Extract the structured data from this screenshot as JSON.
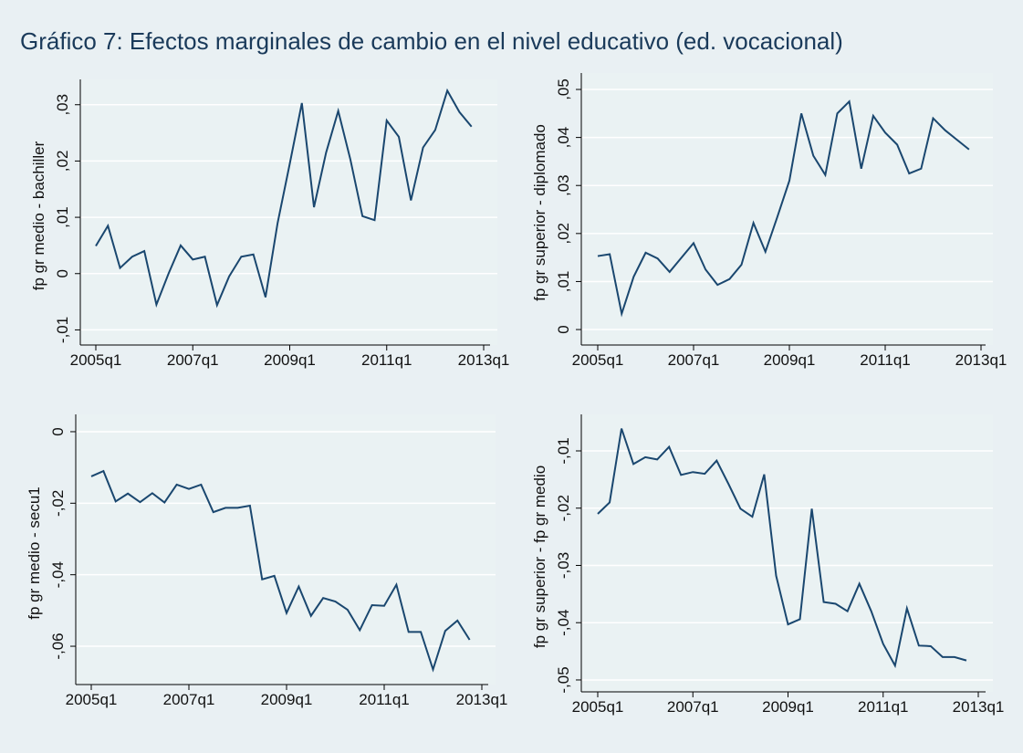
{
  "title": "Gráfico 7: Efectos marginales de cambio en el nivel educativo (ed. vocacional)",
  "chart_data": [
    {
      "type": "line",
      "y_label": "fp gr medio - bachiller",
      "color": "#1a476f",
      "grid": true,
      "x": [
        2005,
        2005.25,
        2005.5,
        2005.75,
        2006,
        2006.25,
        2006.5,
        2006.75,
        2007,
        2007.25,
        2007.5,
        2007.75,
        2008,
        2008.25,
        2008.5,
        2008.75,
        2009,
        2009.25,
        2009.5,
        2009.75,
        2010,
        2010.25,
        2010.5,
        2010.75,
        2011,
        2011.25,
        2011.5,
        2011.75,
        2012,
        2012.25,
        2012.5,
        2012.75
      ],
      "values": [
        0.0049,
        0.0085,
        0.001,
        0.003,
        0.004,
        -0.0055,
        0,
        0.005,
        0.0025,
        0.003,
        -0.0056,
        -0.0005,
        0.003,
        0.0034,
        -0.0042,
        0.009,
        0.0195,
        0.0303,
        0.0118,
        0.0215,
        0.0289,
        0.0203,
        0.0102,
        0.0095,
        0.0272,
        0.0243,
        0.013,
        0.0224,
        0.0255,
        0.0325,
        0.0287,
        0.0261
      ],
      "xlim": [
        2005,
        2013
      ],
      "xticks": [
        {
          "value": 2005,
          "label": "2005q1"
        },
        {
          "value": 2007,
          "label": "2007q1"
        },
        {
          "value": 2009,
          "label": "2009q1"
        },
        {
          "value": 2011,
          "label": "2011q1"
        },
        {
          "value": 2013,
          "label": "2013q1"
        }
      ],
      "ylim": [
        -0.0122,
        0.0332
      ],
      "yticks": [
        {
          "value": -0.01,
          "label": "-,01"
        },
        0,
        {
          "value": 0.01,
          "label": ",01"
        },
        {
          "value": 0.02,
          "label": ",02"
        },
        {
          "value": 0.03,
          "label": ",03"
        }
      ]
    },
    {
      "type": "line",
      "y_label": "fp gr superior - diplomado",
      "color": "#1a476f",
      "grid": true,
      "x": [
        2005,
        2005.25,
        2005.5,
        2005.75,
        2006,
        2006.25,
        2006.5,
        2006.75,
        2007,
        2007.25,
        2007.5,
        2007.75,
        2008,
        2008.25,
        2008.5,
        2008.75,
        2009,
        2009.25,
        2009.5,
        2009.75,
        2010,
        2010.25,
        2010.5,
        2010.75,
        2011,
        2011.25,
        2011.5,
        2011.75,
        2012,
        2012.25,
        2012.5,
        2012.75
      ],
      "values": [
        0.0153,
        0.0157,
        0.0033,
        0.011,
        0.016,
        0.0148,
        0.012,
        0.015,
        0.018,
        0.0125,
        0.0093,
        0.0105,
        0.0135,
        0.0222,
        0.0162,
        0.0235,
        0.031,
        0.045,
        0.0362,
        0.0322,
        0.045,
        0.0475,
        0.0335,
        0.0445,
        0.041,
        0.0385,
        0.0325,
        0.0335,
        0.044,
        0.0415,
        0.0395,
        0.0375
      ],
      "xlim": [
        2005,
        2013
      ],
      "xticks": [
        {
          "value": 2005,
          "label": "2005q1"
        },
        {
          "value": 2007,
          "label": "2007q1"
        },
        {
          "value": 2009,
          "label": "2009q1"
        },
        {
          "value": 2011,
          "label": "2011q1"
        },
        {
          "value": 2013,
          "label": "2013q1"
        }
      ],
      "ylim": [
        -0.0017,
        0.0519
      ],
      "yticks": [
        0,
        {
          "value": 0.01,
          "label": ",01"
        },
        {
          "value": 0.02,
          "label": ",02"
        },
        {
          "value": 0.03,
          "label": ",03"
        },
        {
          "value": 0.04,
          "label": ",04"
        },
        {
          "value": 0.05,
          "label": ",05"
        }
      ]
    },
    {
      "type": "line",
      "y_label": "fp gr medio - secu1",
      "color": "#1a476f",
      "grid": true,
      "x": [
        2005,
        2005.25,
        2005.5,
        2005.75,
        2006,
        2006.25,
        2006.5,
        2006.75,
        2007,
        2007.25,
        2007.5,
        2007.75,
        2008,
        2008.25,
        2008.5,
        2008.75,
        2009,
        2009.25,
        2009.5,
        2009.75,
        2010,
        2010.25,
        2010.5,
        2010.75,
        2011,
        2011.25,
        2011.5,
        2011.75,
        2012,
        2012.25,
        2012.5,
        2012.75
      ],
      "values": [
        -0.0125,
        -0.011,
        -0.0195,
        -0.0173,
        -0.0197,
        -0.0172,
        -0.0198,
        -0.0148,
        -0.016,
        -0.0148,
        -0.0225,
        -0.0213,
        -0.0213,
        -0.0207,
        -0.0413,
        -0.0403,
        -0.0507,
        -0.0433,
        -0.0515,
        -0.0465,
        -0.0475,
        -0.0498,
        -0.0555,
        -0.0485,
        -0.0487,
        -0.0428,
        -0.056,
        -0.056,
        -0.0665,
        -0.0557,
        -0.0528,
        -0.0582
      ],
      "xlim": [
        2005,
        2013
      ],
      "xticks": [
        {
          "value": 2005,
          "label": "2005q1"
        },
        {
          "value": 2007,
          "label": "2007q1"
        },
        {
          "value": 2009,
          "label": "2009q1"
        },
        {
          "value": 2011,
          "label": "2011q1"
        },
        {
          "value": 2013,
          "label": "2013q1"
        }
      ],
      "ylim": [
        -0.0702,
        0.0028
      ],
      "yticks": [
        {
          "value": -0.06,
          "label": "-,06"
        },
        {
          "value": -0.04,
          "label": "-,04"
        },
        {
          "value": -0.02,
          "label": "-,02"
        },
        0
      ]
    },
    {
      "type": "line",
      "y_label": "fp gr superior - fp gr medio",
      "color": "#1a476f",
      "grid": true,
      "x": [
        2005,
        2005.25,
        2005.5,
        2005.75,
        2006,
        2006.25,
        2006.5,
        2006.75,
        2007,
        2007.25,
        2007.5,
        2007.75,
        2008,
        2008.25,
        2008.5,
        2008.75,
        2009,
        2009.25,
        2009.5,
        2009.75,
        2010,
        2010.25,
        2010.5,
        2010.75,
        2011,
        2011.25,
        2011.5,
        2011.75,
        2012,
        2012.25,
        2012.5,
        2012.75
      ],
      "values": [
        -0.021,
        -0.019,
        -0.0061,
        -0.0123,
        -0.0111,
        -0.0115,
        -0.0093,
        -0.0142,
        -0.0137,
        -0.014,
        -0.0117,
        -0.0158,
        -0.0201,
        -0.0215,
        -0.0141,
        -0.0318,
        -0.0403,
        -0.0394,
        -0.0201,
        -0.0364,
        -0.0367,
        -0.038,
        -0.0332,
        -0.038,
        -0.0437,
        -0.0475,
        -0.0375,
        -0.044,
        -0.0441,
        -0.046,
        -0.046,
        -0.0466
      ],
      "xlim": [
        2005,
        2013
      ],
      "xticks": [
        {
          "value": 2005,
          "label": "2005q1"
        },
        {
          "value": 2007,
          "label": "2007q1"
        },
        {
          "value": 2009,
          "label": "2009q1"
        },
        {
          "value": 2011,
          "label": "2011q1"
        },
        {
          "value": 2013,
          "label": "2013q1"
        }
      ],
      "ylim": [
        -0.0516,
        -0.0049
      ],
      "yticks": [
        {
          "value": -0.05,
          "label": "-,05"
        },
        {
          "value": -0.04,
          "label": "-,04"
        },
        {
          "value": -0.03,
          "label": "-,03"
        },
        {
          "value": -0.02,
          "label": "-,02"
        },
        {
          "value": -0.01,
          "label": "-,01"
        }
      ]
    }
  ]
}
